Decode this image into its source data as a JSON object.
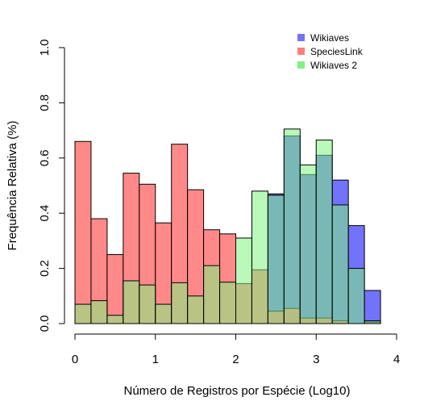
{
  "chart_data": {
    "type": "bar",
    "subtype": "overlapping-histogram",
    "title": "",
    "xlabel": "Número de Registros por Espécie (Log10)",
    "ylabel": "Frequência Relativa (%)",
    "xlim": [
      0,
      4
    ],
    "ylim": [
      0,
      1.0
    ],
    "x_ticks": [
      "0",
      "1",
      "2",
      "3",
      "4"
    ],
    "y_ticks": [
      "0.0",
      "0.2",
      "0.4",
      "0.6",
      "0.8",
      "1.0"
    ],
    "grid": false,
    "legend_position": "top-right",
    "bin_starts": [
      0.0,
      0.2,
      0.4,
      0.6,
      0.8,
      1.0,
      1.2,
      1.4,
      1.6,
      1.8,
      2.0,
      2.2,
      2.4,
      2.6,
      2.8,
      3.0,
      3.2,
      3.4,
      3.6
    ],
    "bin_width": 0.2,
    "series": [
      {
        "name": "Wikiaves",
        "color": "#7272fa",
        "values": [
          0,
          0,
          0,
          0,
          0,
          0,
          0,
          0,
          0,
          0,
          0,
          0,
          0.47,
          0.68,
          0.54,
          0.61,
          0.52,
          0.355,
          0.12
        ]
      },
      {
        "name": "SpeciesLink",
        "color": "#ff7f7f",
        "values": [
          0.66,
          0.38,
          0.25,
          0.545,
          0.505,
          0.365,
          0.65,
          0.485,
          0.34,
          0.325,
          0.145,
          0.195,
          0.045,
          0.055,
          0.02,
          0.02,
          0.01,
          0,
          0.005
        ]
      },
      {
        "name": "Wikiaves 2",
        "color": "#7ff27f",
        "values": [
          0.07,
          0.083,
          0.03,
          0.155,
          0.14,
          0.07,
          0.148,
          0.1,
          0.21,
          0.15,
          0.31,
          0.48,
          0.465,
          0.705,
          0.575,
          0.665,
          0.43,
          0.2,
          0.01
        ]
      }
    ]
  }
}
